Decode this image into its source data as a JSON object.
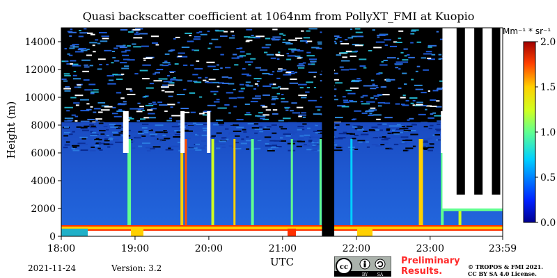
{
  "chart_data": {
    "type": "heatmap",
    "title": "Quasi backscatter coefficient at 1064nm from PollyXT_FMI at Kuopio",
    "xlabel": "UTC",
    "ylabel": "Height (m)",
    "x_ticks": [
      "18:00",
      "19:00",
      "20:00",
      "21:00",
      "22:00",
      "23:00",
      "23:59"
    ],
    "y_ticks": [
      0,
      2000,
      4000,
      6000,
      8000,
      10000,
      12000,
      14000
    ],
    "xlim": [
      "18:00",
      "23:59"
    ],
    "ylim": [
      0,
      15000
    ],
    "colorbar": {
      "label": "Mm⁻¹ * sr⁻¹",
      "ticks": [
        "0.0",
        "0.5",
        "1.0",
        "1.5",
        "2.0"
      ],
      "range": [
        0.0,
        2.0
      ],
      "colormap": "jet"
    },
    "features": [
      {
        "kind": "near-surface enhanced layer",
        "height_m": [
          400,
          800
        ],
        "time": [
          "18:00",
          "23:59"
        ]
      },
      {
        "kind": "no-data gap",
        "time": [
          "21:32",
          "21:42"
        ]
      },
      {
        "kind": "boundary layer top",
        "height_m": 2000,
        "time": [
          "23:10",
          "23:59"
        ]
      }
    ]
  },
  "footer": {
    "date": "2021-11-24",
    "version": "Version: 3.2",
    "preliminary": "Preliminary\nResults.",
    "copyright": "© TROPOS & FMI 2021.\nCC BY SA 4.0 License.",
    "cc_text": "cc",
    "cc_by": "BY",
    "cc_sa": "SA"
  },
  "colors": {
    "background_signal": "#1e5ad6",
    "no_data": "#000000",
    "surface_layer": "#ff3000"
  }
}
